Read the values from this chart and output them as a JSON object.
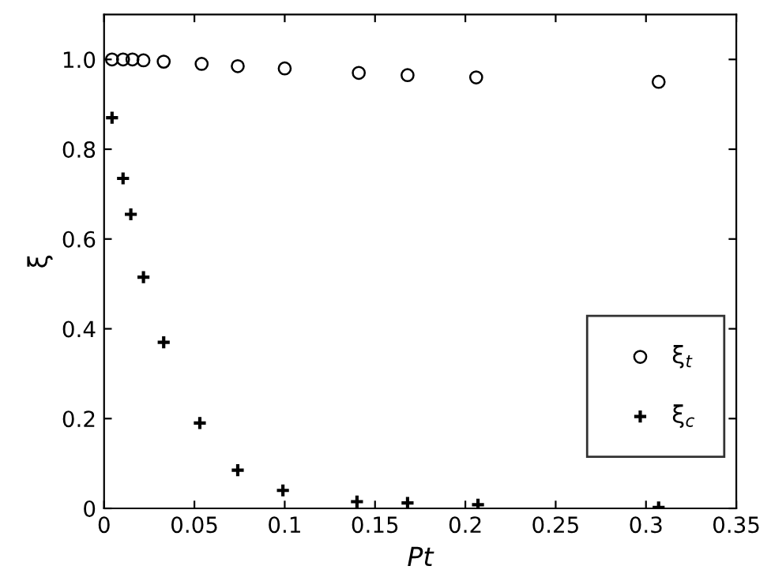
{
  "chart_data": {
    "type": "scatter",
    "xlabel": "Pt",
    "ylabel": "ξ",
    "series": [
      {
        "name": "ξ$_{t}$",
        "color": "#000000",
        "marker": "circle",
        "x": [
          0.0044,
          0.0105,
          0.0157,
          0.0218,
          0.033,
          0.054,
          0.074,
          0.1,
          0.141,
          0.168,
          0.206,
          0.307
        ],
        "values": [
          1.0,
          1.0,
          1.0,
          0.998,
          0.995,
          0.99,
          0.985,
          0.98,
          0.97,
          0.965,
          0.96,
          0.95
        ]
      },
      {
        "name": "ξ$_{c}$",
        "color": "#000000",
        "marker": "cross",
        "x": [
          0.0044,
          0.0105,
          0.0148,
          0.0218,
          0.033,
          0.053,
          0.074,
          0.099,
          0.14,
          0.168,
          0.207,
          0.307
        ],
        "values": [
          0.87,
          0.735,
          0.655,
          0.515,
          0.37,
          0.19,
          0.085,
          0.04,
          0.015,
          0.012,
          0.008,
          0.002
        ]
      }
    ],
    "xlim": [
      0,
      0.35
    ],
    "xticks": [
      0,
      0.05,
      0.1,
      0.15,
      0.2,
      0.25,
      0.3,
      0.35
    ],
    "ylim": [
      0,
      1.1
    ],
    "yticks": [
      0,
      0.2,
      0.4,
      0.6,
      0.8,
      {
        "value": 1.0,
        "label": "1.0"
      }
    ],
    "grid": false,
    "legend": "bottom right"
  }
}
